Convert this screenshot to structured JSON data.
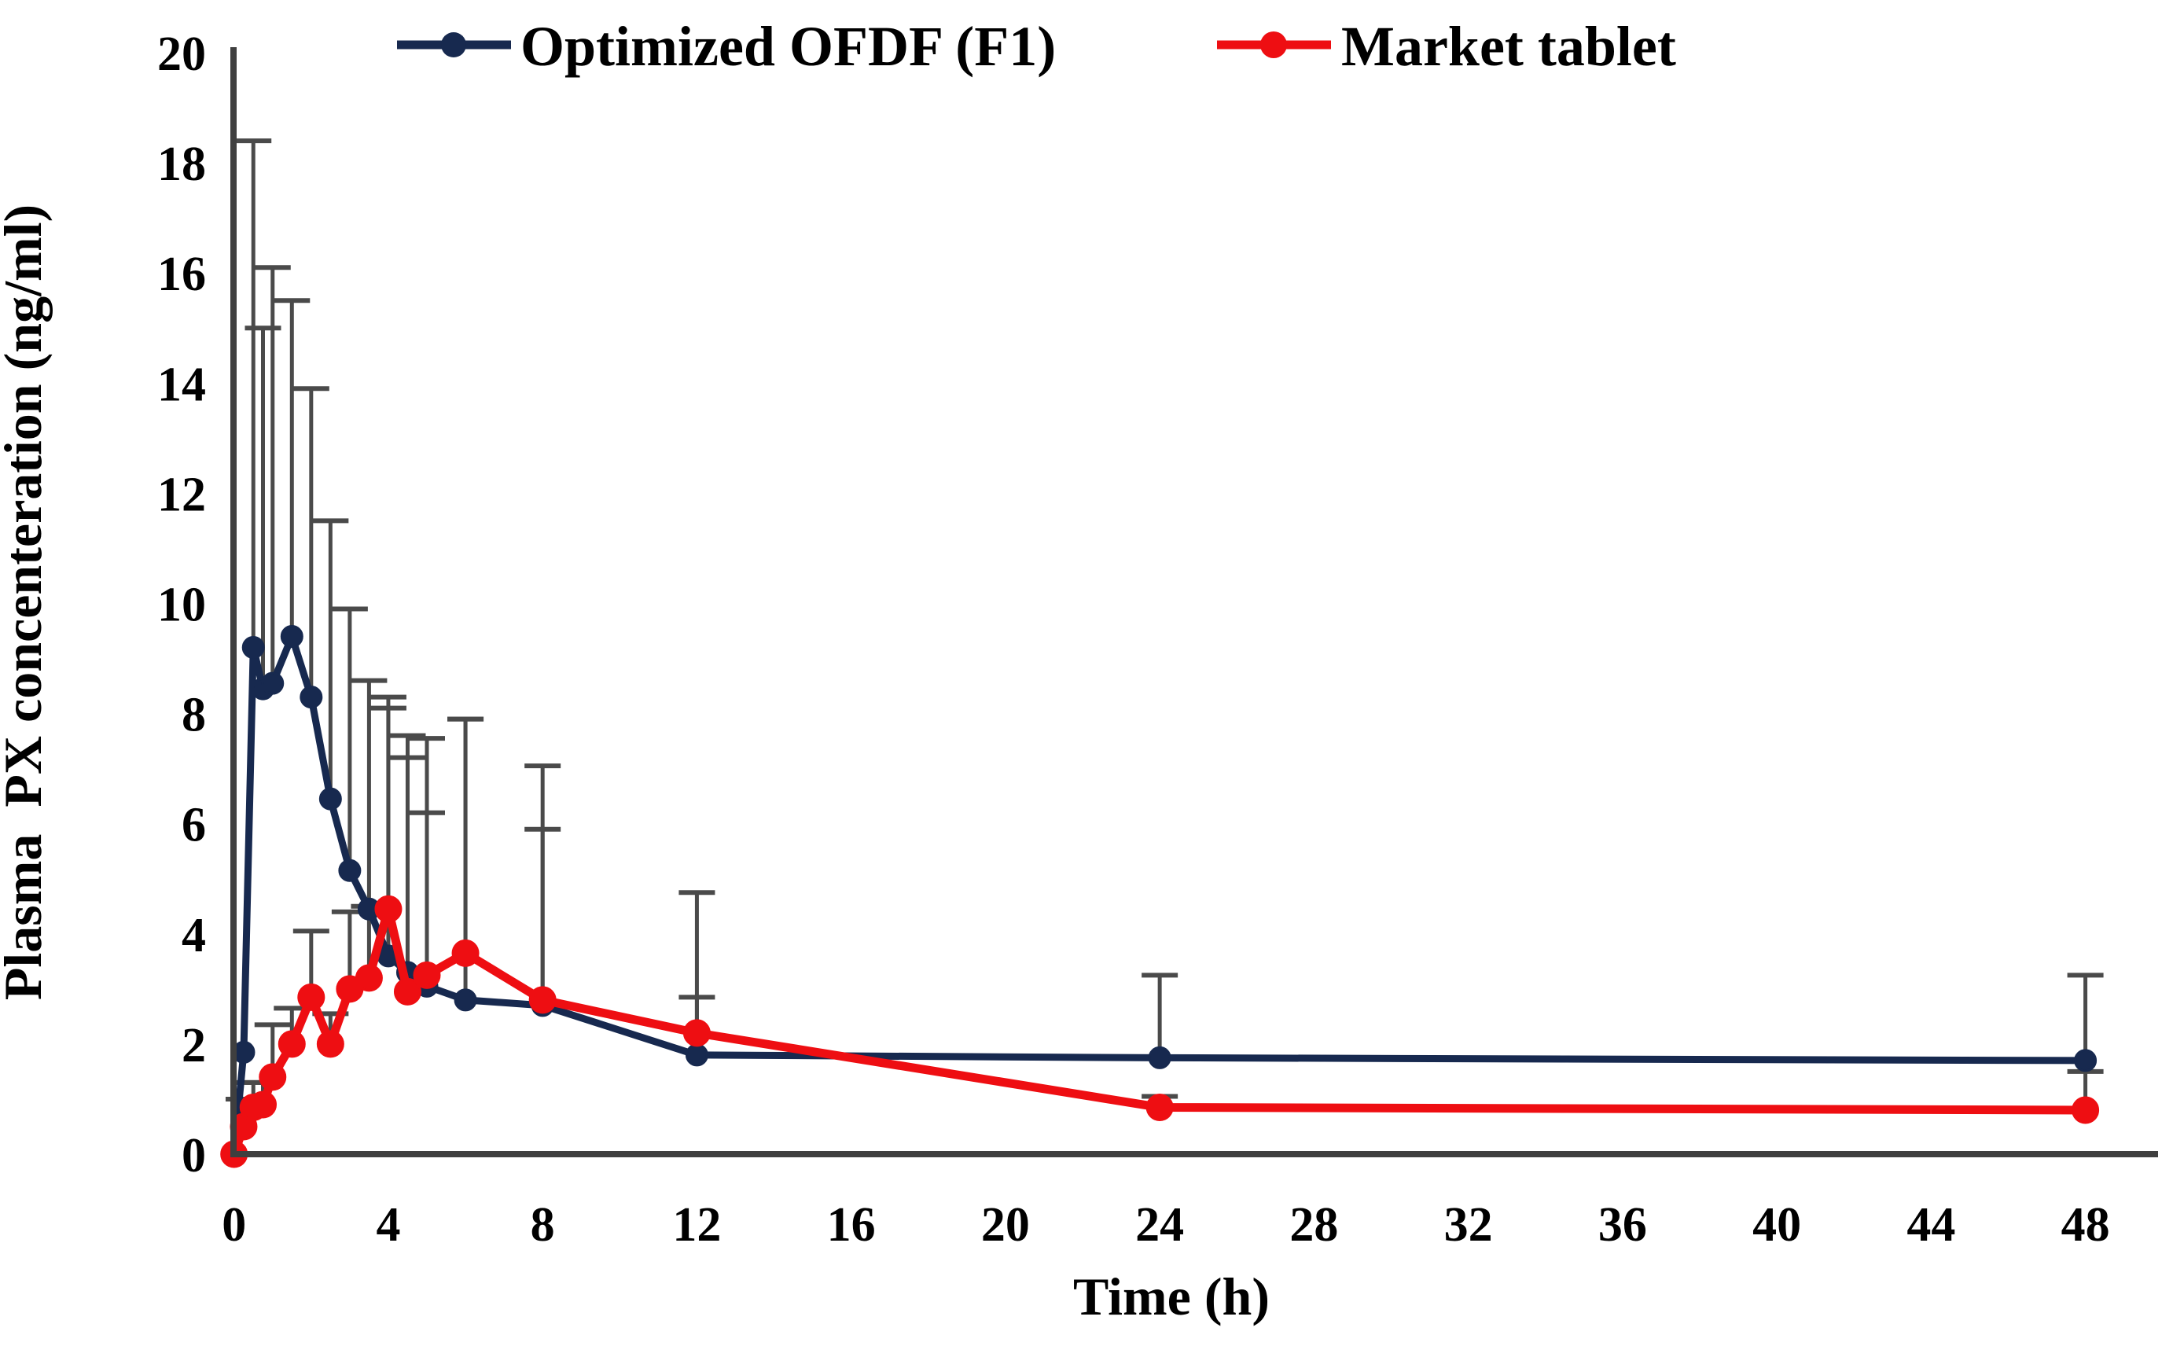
{
  "figure": {
    "background": "#ffffff",
    "axis_color": "#3f3f3f",
    "error_bar_color": "#4a4a4a",
    "text_color": "#000000"
  },
  "chart_data": {
    "type": "line",
    "title": "",
    "xlabel": "Time (h)",
    "ylabel": "Plasma  PX concenteration (ng/ml)",
    "x": [
      0,
      0.25,
      0.5,
      0.75,
      1,
      1.5,
      2,
      2.5,
      3,
      3.5,
      4,
      4.5,
      5,
      6,
      8,
      12,
      24,
      48
    ],
    "series": [
      {
        "name": "Optimized OFDF (F1)",
        "color": "#17294f",
        "marker": "circle",
        "marker_radius": 13,
        "line_width": 9,
        "values": [
          0,
          1.85,
          9.2,
          8.45,
          8.55,
          9.4,
          8.3,
          6.45,
          5.15,
          4.45,
          3.6,
          3.3,
          3.05,
          2.8,
          2.7,
          1.8,
          1.75,
          1.7
        ],
        "err_up": [
          0,
          0,
          9.2,
          6.55,
          7.55,
          6.1,
          5.6,
          5.05,
          4.75,
          4.15,
          4.5,
          4.3,
          3.15,
          5.1,
          3.2,
          2.95,
          1.5,
          1.55
        ]
      },
      {
        "name": "Market tablet",
        "color": "#ee0e12",
        "marker": "circle",
        "marker_radius": 16,
        "line_width": 11,
        "values": [
          0,
          0.5,
          0.85,
          0.9,
          1.4,
          2.0,
          2.85,
          2.0,
          3.0,
          3.2,
          4.45,
          2.95,
          3.25,
          3.65,
          2.8,
          2.2,
          0.85,
          0.8
        ],
        "err_up": [
          0,
          0.5,
          0.45,
          0.4,
          0.95,
          0.65,
          1.2,
          0.55,
          1.4,
          1.3,
          3.85,
          4.25,
          4.3,
          4.25,
          4.25,
          0.65,
          0.2,
          0.7
        ]
      }
    ],
    "xticks": [
      0,
      4,
      8,
      12,
      16,
      20,
      24,
      28,
      32,
      36,
      40,
      44,
      48
    ],
    "yticks": [
      0,
      2,
      4,
      6,
      8,
      10,
      12,
      14,
      16,
      18,
      20
    ],
    "xlim": [
      0,
      49.9
    ],
    "ylim": [
      0,
      20
    ],
    "grid": false,
    "legend_position": "top",
    "error_bars": "upper-only"
  }
}
